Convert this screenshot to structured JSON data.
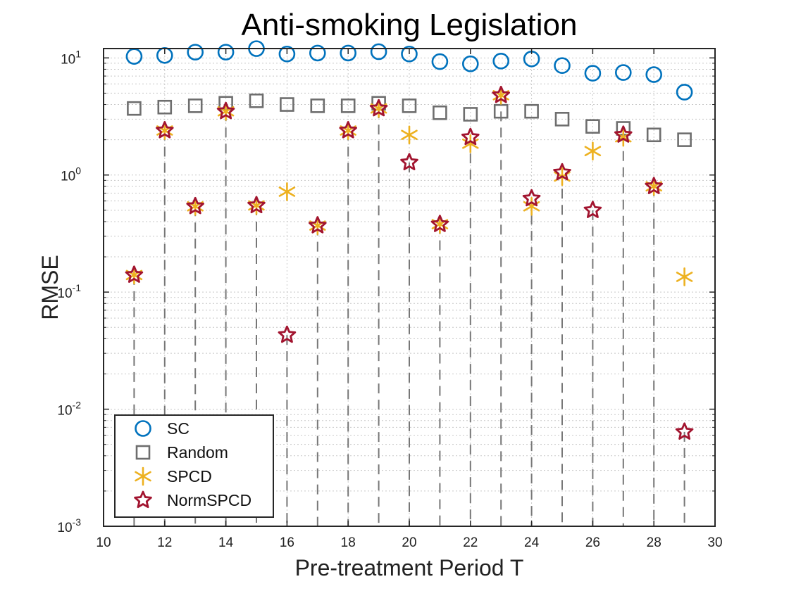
{
  "chart_data": {
    "type": "scatter",
    "title": "Anti-smoking Legislation",
    "xlabel": "Pre-treatment Period T",
    "ylabel": "RMSE",
    "xlim": [
      10,
      30
    ],
    "ylim": [
      0.001,
      12
    ],
    "yscale": "log",
    "x_ticks": [
      "10",
      "12",
      "14",
      "16",
      "18",
      "20",
      "22",
      "24",
      "26",
      "28",
      "30"
    ],
    "y_ticks": [
      {
        "base": "10",
        "exp": "-3"
      },
      {
        "base": "10",
        "exp": "-2"
      },
      {
        "base": "10",
        "exp": "-1"
      },
      {
        "base": "10",
        "exp": "0"
      },
      {
        "base": "10",
        "exp": "1"
      }
    ],
    "grid": "dotted major and minor grid, dashed vertical lines at each integer pre-treatment period with a NormSPCD value",
    "legend_position": "bottom-left",
    "series": [
      {
        "name": "SC",
        "marker": "circle",
        "color": "#0072BD",
        "points": [
          [
            11,
            10.3
          ],
          [
            12,
            10.5
          ],
          [
            13,
            11.2
          ],
          [
            14,
            11.2
          ],
          [
            15,
            12.0
          ],
          [
            16,
            10.8
          ],
          [
            17,
            11.0
          ],
          [
            18,
            11.0
          ],
          [
            19,
            11.3
          ],
          [
            20,
            10.8
          ],
          [
            21,
            9.3
          ],
          [
            22,
            8.9
          ],
          [
            23,
            9.4
          ],
          [
            24,
            9.8
          ],
          [
            25,
            8.6
          ],
          [
            26,
            7.4
          ],
          [
            27,
            7.5
          ],
          [
            28,
            7.2
          ],
          [
            29,
            5.1
          ]
        ]
      },
      {
        "name": "Random",
        "marker": "square",
        "color": "#6E6E6E",
        "points": [
          [
            11,
            3.7
          ],
          [
            12,
            3.8
          ],
          [
            13,
            3.9
          ],
          [
            14,
            4.1
          ],
          [
            15,
            4.3
          ],
          [
            16,
            4.0
          ],
          [
            17,
            3.9
          ],
          [
            18,
            3.9
          ],
          [
            19,
            4.1
          ],
          [
            20,
            3.9
          ],
          [
            21,
            3.4
          ],
          [
            22,
            3.3
          ],
          [
            23,
            3.5
          ],
          [
            24,
            3.5
          ],
          [
            25,
            3.0
          ],
          [
            26,
            2.6
          ],
          [
            27,
            2.5
          ],
          [
            28,
            2.2
          ],
          [
            29,
            2.0
          ]
        ]
      },
      {
        "name": "SPCD",
        "marker": "asterisk",
        "color": "#EDB120",
        "points": [
          [
            11,
            0.14
          ],
          [
            12,
            2.4
          ],
          [
            13,
            0.54
          ],
          [
            14,
            3.5
          ],
          [
            15,
            0.55
          ],
          [
            16,
            0.72
          ],
          [
            17,
            0.37
          ],
          [
            18,
            2.4
          ],
          [
            19,
            3.7
          ],
          [
            20,
            2.2
          ],
          [
            21,
            0.38
          ],
          [
            22,
            1.85
          ],
          [
            23,
            4.8
          ],
          [
            24,
            0.54
          ],
          [
            25,
            0.97
          ],
          [
            26,
            1.6
          ],
          [
            27,
            2.1
          ],
          [
            28,
            0.8
          ],
          [
            29,
            0.135
          ]
        ]
      },
      {
        "name": "NormSPCD",
        "marker": "pentagram",
        "color": "#A2142F",
        "points": [
          [
            11,
            0.14
          ],
          [
            12,
            2.4
          ],
          [
            13,
            0.54
          ],
          [
            14,
            3.5
          ],
          [
            15,
            0.55
          ],
          [
            16,
            0.043
          ],
          [
            17,
            0.37
          ],
          [
            18,
            2.4
          ],
          [
            19,
            3.7
          ],
          [
            20,
            1.28
          ],
          [
            21,
            0.38
          ],
          [
            22,
            2.1
          ],
          [
            23,
            4.8
          ],
          [
            24,
            0.63
          ],
          [
            25,
            1.05
          ],
          [
            26,
            0.5
          ],
          [
            27,
            2.2
          ],
          [
            28,
            0.8
          ],
          [
            29,
            0.0064
          ]
        ]
      }
    ]
  }
}
